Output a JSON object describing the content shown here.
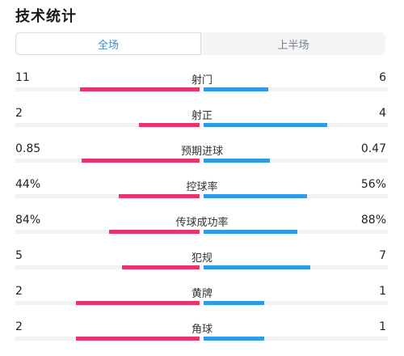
{
  "header": {
    "title": "技术统计"
  },
  "tabs": [
    {
      "label": "全场",
      "active": true
    },
    {
      "label": "上半场",
      "active": false
    }
  ],
  "colors": {
    "home": "#e8336b",
    "away": "#2f9be8",
    "active_tab": "#3a8fd6"
  },
  "stats": [
    {
      "label": "射门",
      "left": "11",
      "right": "6",
      "left_fill": 0.65,
      "right_fill": 0.35
    },
    {
      "label": "射正",
      "left": "2",
      "right": "4",
      "left_fill": 0.33,
      "right_fill": 0.67
    },
    {
      "label": "预期进球",
      "left": "0.85",
      "right": "0.47",
      "left_fill": 0.64,
      "right_fill": 0.36
    },
    {
      "label": "控球率",
      "left": "44%",
      "right": "56%",
      "left_fill": 0.44,
      "right_fill": 0.56
    },
    {
      "label": "传球成功率",
      "left": "84%",
      "right": "88%",
      "left_fill": 0.49,
      "right_fill": 0.51
    },
    {
      "label": "犯规",
      "left": "5",
      "right": "7",
      "left_fill": 0.42,
      "right_fill": 0.58
    },
    {
      "label": "黄牌",
      "left": "2",
      "right": "1",
      "left_fill": 0.67,
      "right_fill": 0.33
    },
    {
      "label": "角球",
      "left": "2",
      "right": "1",
      "left_fill": 0.67,
      "right_fill": 0.33
    }
  ]
}
